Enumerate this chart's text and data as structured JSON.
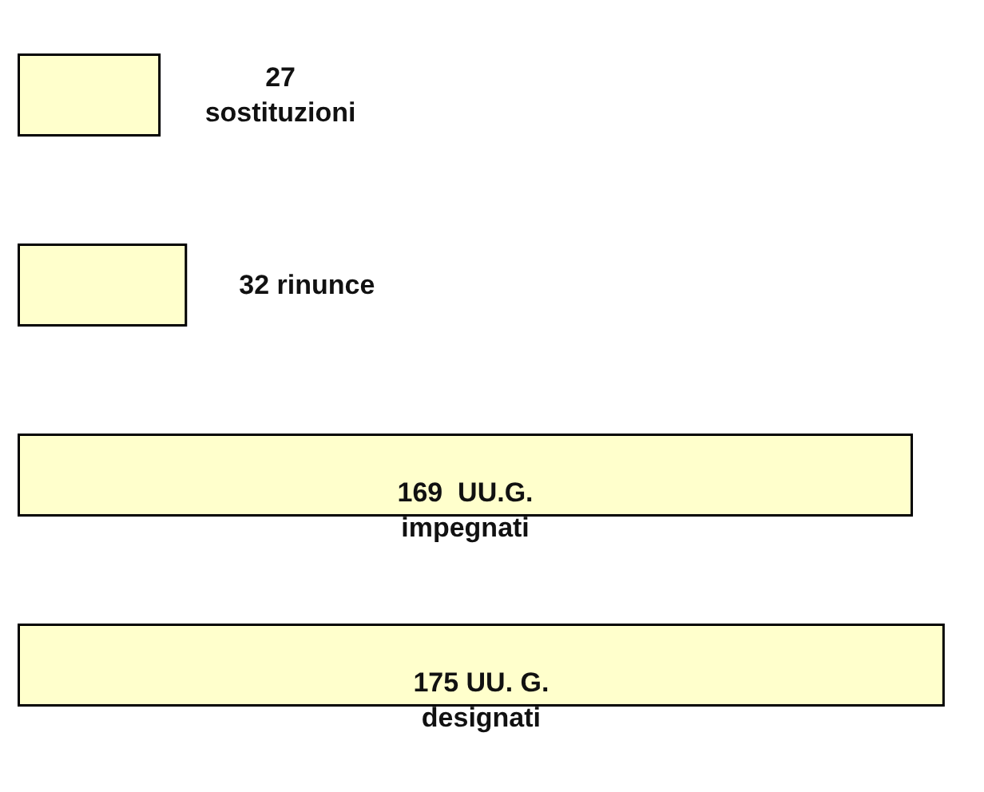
{
  "chart_data": {
    "type": "bar",
    "orientation": "horizontal",
    "categories": [
      null,
      null,
      null,
      null
    ],
    "values": [
      27,
      32,
      169,
      175
    ],
    "value_labels": [
      "27\nsostituzioni",
      "32 rinunce",
      "169  UU.G.\nimpegnati",
      "175 UU. G.\ndesignati"
    ],
    "color": "#ffffcc",
    "legend": false
  }
}
